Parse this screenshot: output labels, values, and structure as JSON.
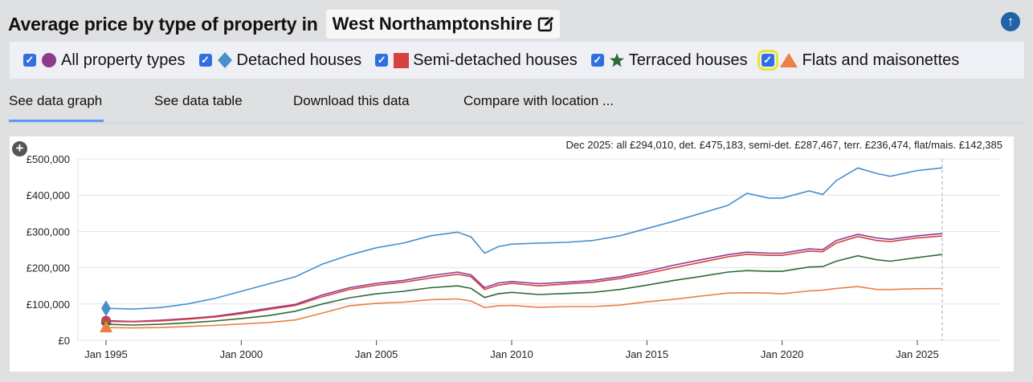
{
  "header": {
    "title": "Average price by type of property in",
    "location": "West Northamptonshire",
    "edit_icon": "edit-icon",
    "scroll_top_icon": "arrow-up-circle-icon"
  },
  "legend": [
    {
      "label": "All property types",
      "marker": "circle",
      "color": "#8e3a8e",
      "checked": true
    },
    {
      "label": "Detached houses",
      "marker": "diamond",
      "color": "#4a8fc9",
      "checked": true
    },
    {
      "label": "Semi-detached houses",
      "marker": "square",
      "color": "#d64141",
      "checked": true
    },
    {
      "label": "Terraced houses",
      "marker": "star",
      "color": "#2f6a3a",
      "checked": true
    },
    {
      "label": "Flats and maisonettes",
      "marker": "triangle",
      "color": "#ec7f45",
      "checked": true
    }
  ],
  "tabs": [
    {
      "label": "See data graph",
      "active": true
    },
    {
      "label": "See data table",
      "active": false
    },
    {
      "label": "Download this data",
      "active": false
    },
    {
      "label": "Compare with location ...",
      "active": false
    }
  ],
  "chart_data": {
    "type": "line",
    "annotation": "Dec 2025: all £294,010, det. £475,183, semi-det. £287,467, terr. £236,474, flat/mais. £142,385",
    "ylim": [
      0,
      500000
    ],
    "yticks": [
      "£0",
      "£100,000",
      "£200,000",
      "£300,000",
      "£400,000",
      "£500,000"
    ],
    "ytick_values": [
      0,
      100000,
      200000,
      300000,
      400000,
      500000
    ],
    "xticks": [
      "Jan 1995",
      "Jan 2000",
      "Jan 2005",
      "Jan 2010",
      "Jan 2015",
      "Jan 2020",
      "Jan 2025"
    ],
    "xtick_values": [
      1995,
      2000,
      2005,
      2010,
      2015,
      2020,
      2025
    ],
    "xlim": [
      1994.0,
      2027.0
    ],
    "cursor_date": 2025.92,
    "grid": true,
    "x": [
      1995,
      1996,
      1997,
      1998,
      1999,
      2000,
      2001,
      2002,
      2003,
      2004,
      2005,
      2006,
      2007,
      2008,
      2008.5,
      2009,
      2009.5,
      2010,
      2011,
      2012,
      2013,
      2014,
      2015,
      2016,
      2017,
      2018,
      2018.7,
      2019.5,
      2020,
      2021,
      2021.5,
      2022,
      2022.8,
      2023.5,
      2024,
      2025,
      2025.92
    ],
    "series": [
      {
        "name": "Detached houses",
        "color": "#4a8fc9",
        "values": [
          88000,
          86000,
          90000,
          100000,
          115000,
          135000,
          155000,
          175000,
          210000,
          235000,
          255000,
          268000,
          288000,
          298000,
          285000,
          240000,
          258000,
          265000,
          268000,
          270000,
          275000,
          288000,
          308000,
          328000,
          350000,
          372000,
          405000,
          392000,
          392000,
          412000,
          402000,
          440000,
          475000,
          460000,
          452000,
          468000,
          475183
        ]
      },
      {
        "name": "All property types",
        "color": "#8e3a8e",
        "values": [
          54000,
          52000,
          55000,
          60000,
          66000,
          76000,
          88000,
          99000,
          125000,
          145000,
          157000,
          165000,
          178000,
          188000,
          180000,
          145000,
          158000,
          162000,
          156000,
          160000,
          165000,
          175000,
          190000,
          207000,
          222000,
          236000,
          243000,
          240000,
          240000,
          252000,
          250000,
          275000,
          292000,
          282000,
          278000,
          288000,
          294010
        ]
      },
      {
        "name": "Semi-detached houses",
        "color": "#d64141",
        "values": [
          52000,
          51000,
          53000,
          58000,
          64000,
          73000,
          85000,
          96000,
          120000,
          140000,
          152000,
          160000,
          172000,
          182000,
          175000,
          140000,
          152000,
          157000,
          150000,
          155000,
          160000,
          170000,
          184000,
          200000,
          215000,
          230000,
          237000,
          234000,
          234000,
          246000,
          244000,
          268000,
          286000,
          275000,
          272000,
          282000,
          287467
        ]
      },
      {
        "name": "Terraced houses",
        "color": "#2f6a3a",
        "values": [
          44000,
          42000,
          44000,
          48000,
          53000,
          60000,
          68000,
          80000,
          100000,
          117000,
          128000,
          135000,
          145000,
          150000,
          143000,
          118000,
          128000,
          132000,
          126000,
          129000,
          132000,
          140000,
          152000,
          165000,
          176000,
          188000,
          192000,
          190000,
          190000,
          202000,
          203000,
          218000,
          233000,
          222000,
          218000,
          228000,
          236474
        ]
      },
      {
        "name": "Flats and maisonettes",
        "color": "#ec7f45",
        "values": [
          35000,
          34000,
          35000,
          38000,
          41000,
          45000,
          49000,
          56000,
          75000,
          95000,
          102000,
          105000,
          112000,
          114000,
          108000,
          90000,
          95000,
          96000,
          91000,
          93000,
          93000,
          97000,
          106000,
          113000,
          122000,
          130000,
          131000,
          130000,
          128000,
          136000,
          138000,
          143000,
          148000,
          140000,
          140000,
          142000,
          142385
        ]
      }
    ]
  }
}
